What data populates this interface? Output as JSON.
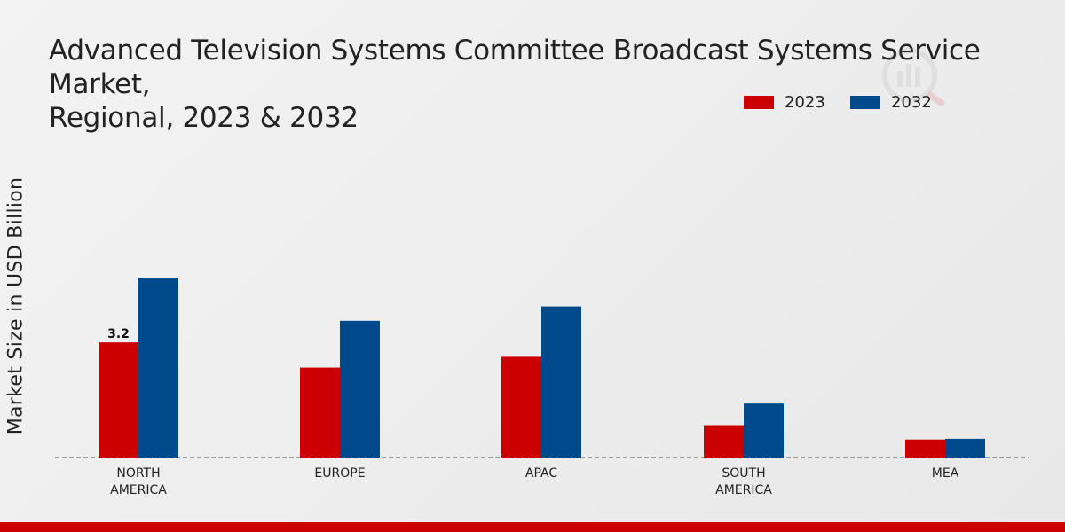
{
  "chart_data": {
    "type": "bar",
    "title": "Advanced Television Systems Committee Broadcast Systems Service Market, Regional, 2023 & 2032",
    "title_lines": [
      "Advanced Television Systems Committee Broadcast Systems Service Market,",
      "Regional, 2023 & 2032"
    ],
    "xlabel": "",
    "ylabel": "Market Size in USD Billion",
    "categories": [
      "NORTH AMERICA",
      "EUROPE",
      "APAC",
      "SOUTH AMERICA",
      "MEA"
    ],
    "category_lines": [
      [
        "NORTH",
        "AMERICA"
      ],
      [
        "EUROPE"
      ],
      [
        "APAC"
      ],
      [
        "SOUTH",
        "AMERICA"
      ],
      [
        "MEA"
      ]
    ],
    "series": [
      {
        "name": "2023",
        "color": "#cc0000",
        "values": [
          3.2,
          2.5,
          2.8,
          0.9,
          0.5
        ]
      },
      {
        "name": "2032",
        "color": "#004a8c",
        "values": [
          5.0,
          3.8,
          4.2,
          1.5,
          0.52
        ]
      }
    ],
    "annotations": [
      {
        "series": 0,
        "category": 0,
        "label": "3.2"
      }
    ],
    "ylim": [
      0,
      10.5
    ],
    "grid": false,
    "legend_position": "top-right"
  }
}
